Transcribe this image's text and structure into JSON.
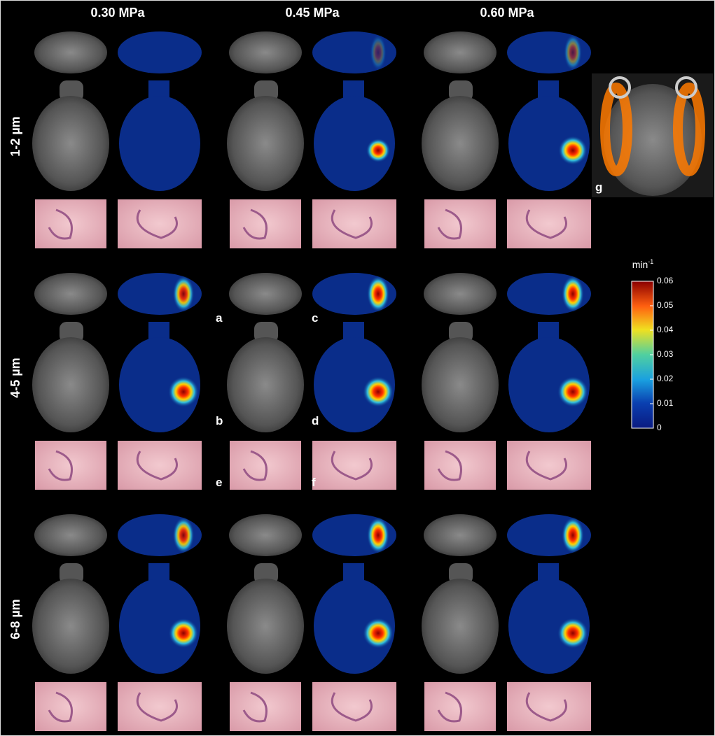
{
  "columns": [
    "0.30 MPa",
    "0.45 MPa",
    "0.60 MPa"
  ],
  "rows": [
    "1-2 µm",
    "4-5 µm",
    "6-8 µm"
  ],
  "panel_letters": {
    "a": "a",
    "b": "b",
    "c": "c",
    "d": "d",
    "e": "e",
    "f": "f",
    "g": "g"
  },
  "colorbar": {
    "unit": "min",
    "unit_exponent": "-1",
    "lim": [
      0,
      0.06
    ],
    "ticks": [
      0,
      0.01,
      0.02,
      0.03,
      0.04,
      0.05,
      0.06
    ]
  }
}
